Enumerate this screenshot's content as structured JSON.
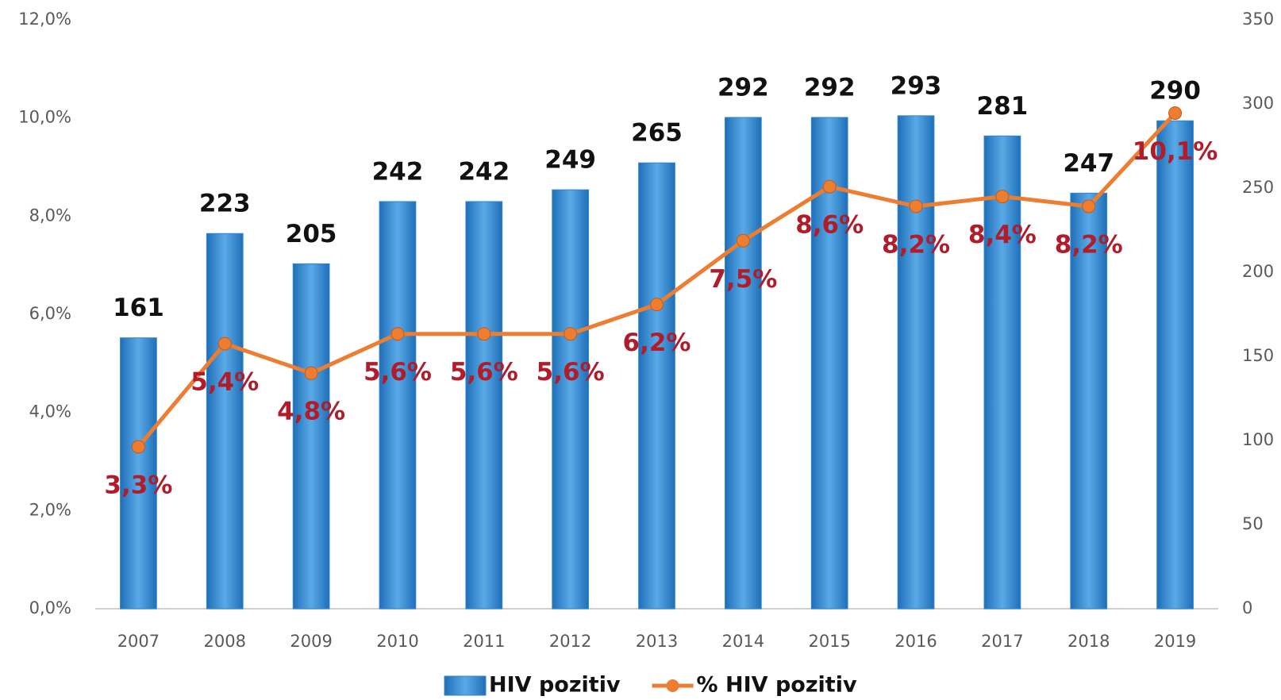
{
  "chart_data": {
    "type": "bar-line",
    "categories": [
      "2007",
      "2008",
      "2009",
      "2010",
      "2011",
      "2012",
      "2013",
      "2014",
      "2015",
      "2016",
      "2017",
      "2018",
      "2019"
    ],
    "series": [
      {
        "name": "HIV pozitiv",
        "type": "bar",
        "axis": "y2",
        "color": "#2e86d4",
        "values": [
          161,
          223,
          205,
          242,
          242,
          249,
          265,
          292,
          292,
          293,
          281,
          247,
          290
        ]
      },
      {
        "name": "% HIV pozitiv",
        "type": "line",
        "axis": "y",
        "color": "#ed7d31",
        "values": [
          3.3,
          5.4,
          4.8,
          5.6,
          5.6,
          5.6,
          6.2,
          7.5,
          8.6,
          8.2,
          8.4,
          8.2,
          10.1
        ],
        "value_labels": [
          "3,3%",
          "5,4%",
          "4,8%",
          "5,6%",
          "5,6%",
          "5,6%",
          "6,2%",
          "7,5%",
          "8,6%",
          "8,2%",
          "8,4%",
          "8,2%",
          "10,1%"
        ]
      }
    ],
    "ylim": [
      0,
      12
    ],
    "yticks": [
      {
        "value": 0,
        "label": "0,0%"
      },
      {
        "value": 2,
        "label": "2,0%"
      },
      {
        "value": 4,
        "label": "4,0%"
      },
      {
        "value": 6,
        "label": "6,0%"
      },
      {
        "value": 8,
        "label": "8,0%"
      },
      {
        "value": 10,
        "label": "10,0%"
      },
      {
        "value": 12,
        "label": "12,0%"
      }
    ],
    "y2lim": [
      0,
      350
    ],
    "y2ticks": [
      0,
      50,
      100,
      150,
      200,
      250,
      300,
      350
    ],
    "legend": "bottom"
  }
}
